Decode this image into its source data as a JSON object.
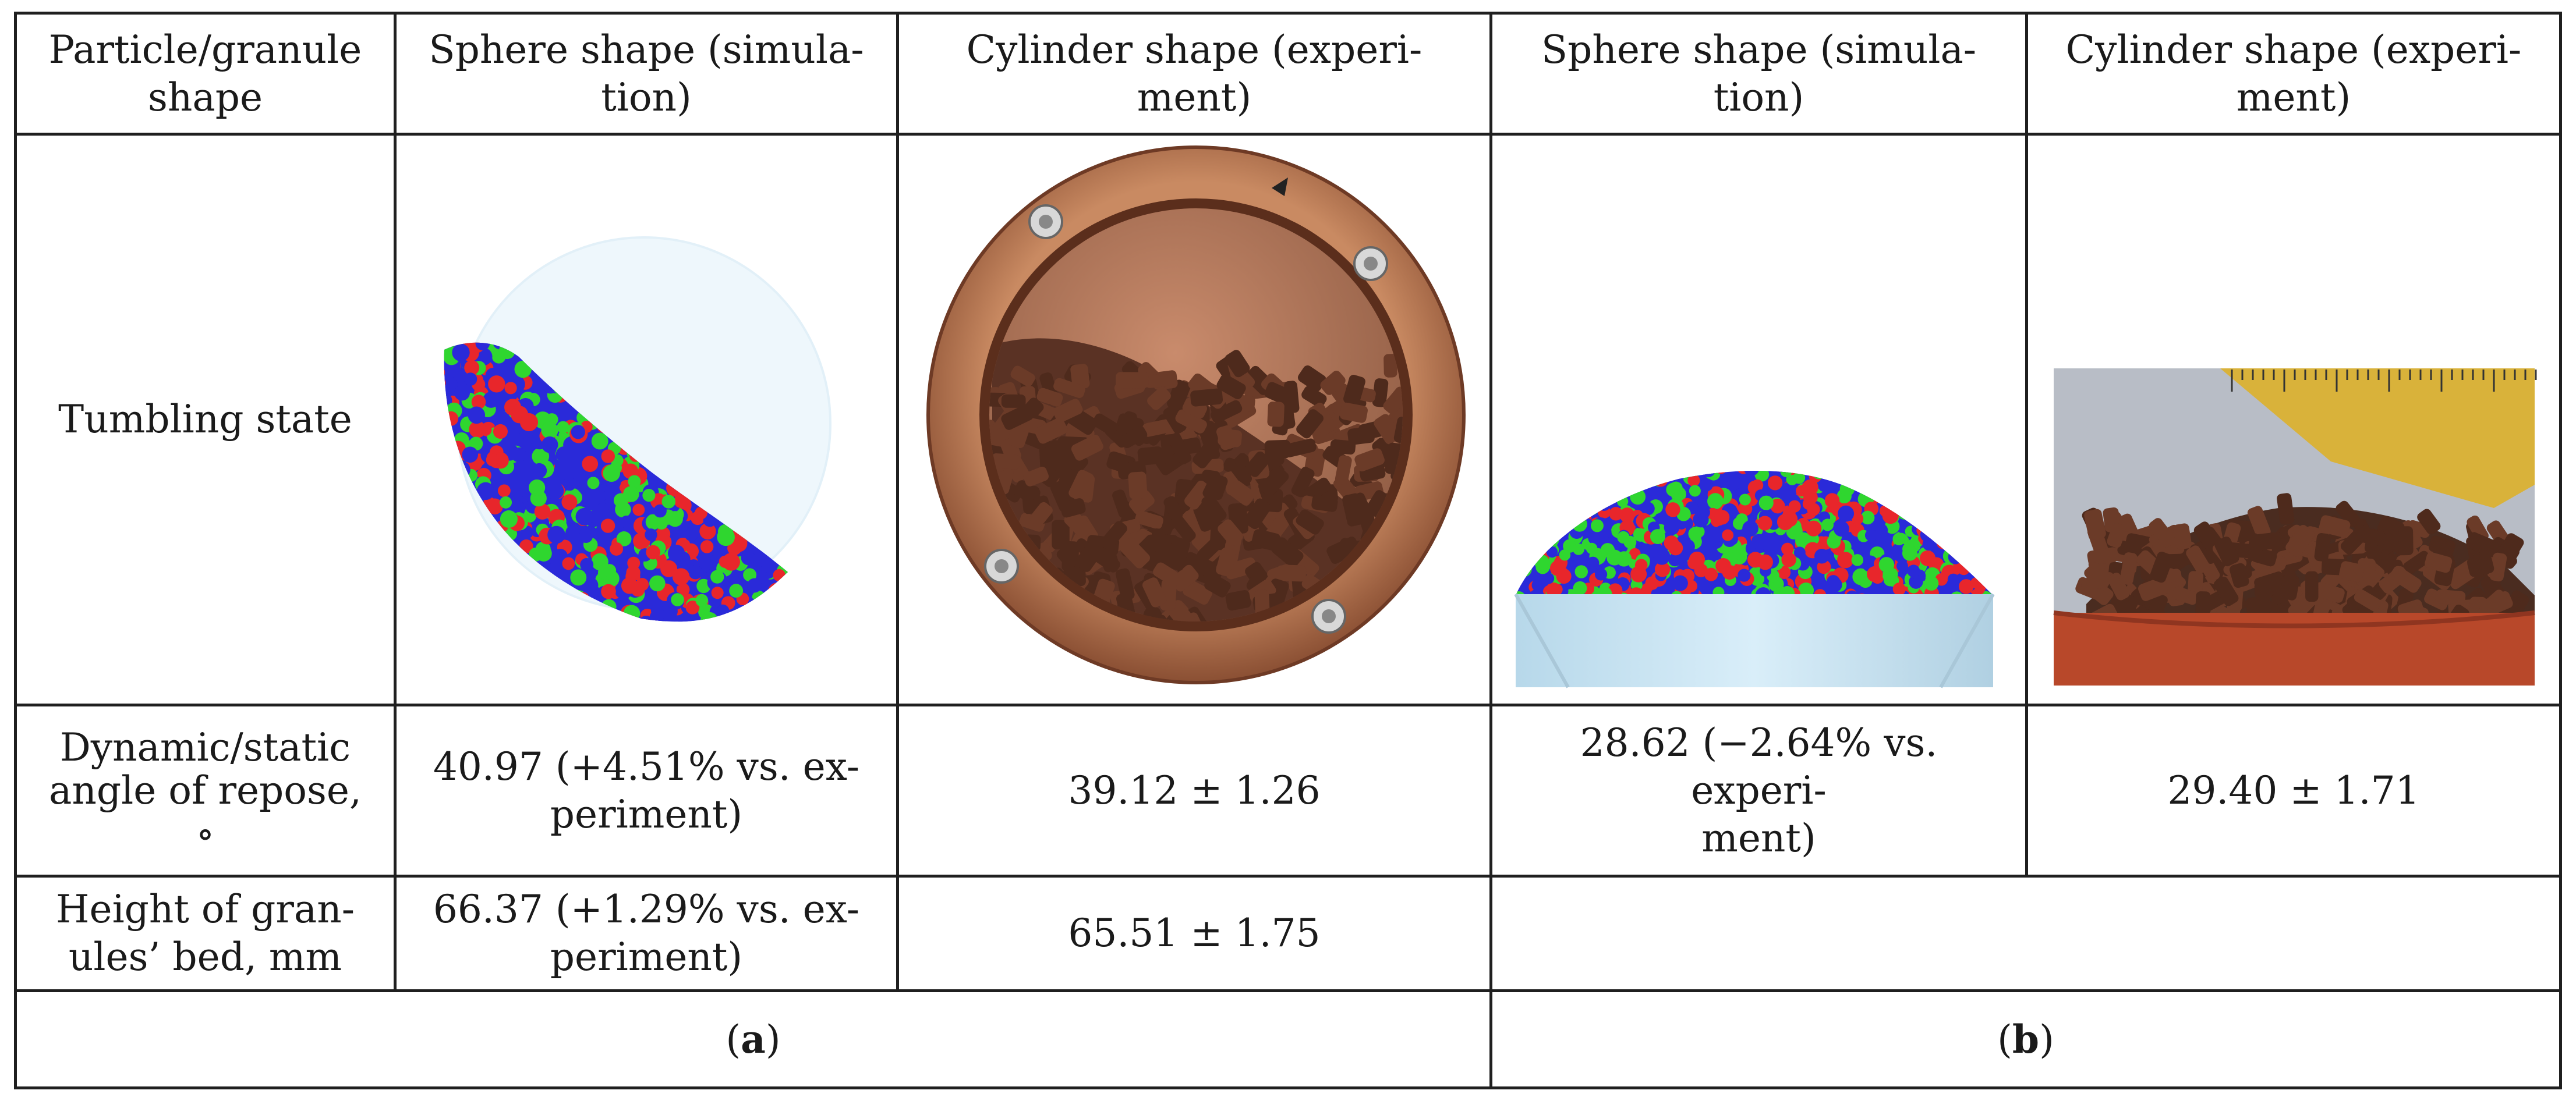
{
  "table": {
    "header": {
      "col0": "Particle/granule shape",
      "col1": "Sphere shape (simula-tion)",
      "col2": "Cylinder shape (experi-ment)",
      "col3": "Sphere shape (simula-tion)",
      "col4": "Cylinder shape (experi-ment)"
    },
    "header_lines": {
      "col0_l1": "Particle/granule",
      "col0_l2": "shape",
      "col1_l1": "Sphere shape (simula-",
      "col1_l2": "tion)",
      "col2_l1": "Cylinder shape (experi-",
      "col2_l2": "ment)",
      "col3_l1": "Sphere shape (simula-",
      "col3_l2": "tion)",
      "col4_l1": "Cylinder shape (experi-",
      "col4_l2": "ment)"
    },
    "rows": {
      "tumbling": {
        "label": "Tumbling state"
      },
      "angle": {
        "label_l1": "Dynamic/static",
        "label_l2": "angle of repose,",
        "label_l3": "∘",
        "a_sim_l1": "40.97 (+4.51% vs. ex-",
        "a_sim_l2": "periment)",
        "a_exp": "39.12 ± 1.26",
        "b_sim_l1": "28.62 (−2.64% vs. experi-",
        "b_sim_l2": "ment)",
        "b_exp": "29.40 ± 1.71"
      },
      "height": {
        "label_l1": "Height of gran-",
        "label_l2": "ules’ bed, mm",
        "a_sim_l1": "66.37 (+1.29% vs. ex-",
        "a_sim_l2": "periment)",
        "a_exp": "65.51 ± 1.75"
      }
    },
    "footer": {
      "a_open": "(",
      "a_letter": "a",
      "a_close": ")",
      "b_open": "(",
      "b_letter": "b",
      "b_close": ")"
    }
  },
  "colors": {
    "particle_red": "#e8262b",
    "particle_green": "#2fd62f",
    "particle_blue": "#2a2ad9",
    "pellet_brown": "#5a3224",
    "copper": "#b06b4a",
    "ruler_yellow": "#d9b23a"
  }
}
